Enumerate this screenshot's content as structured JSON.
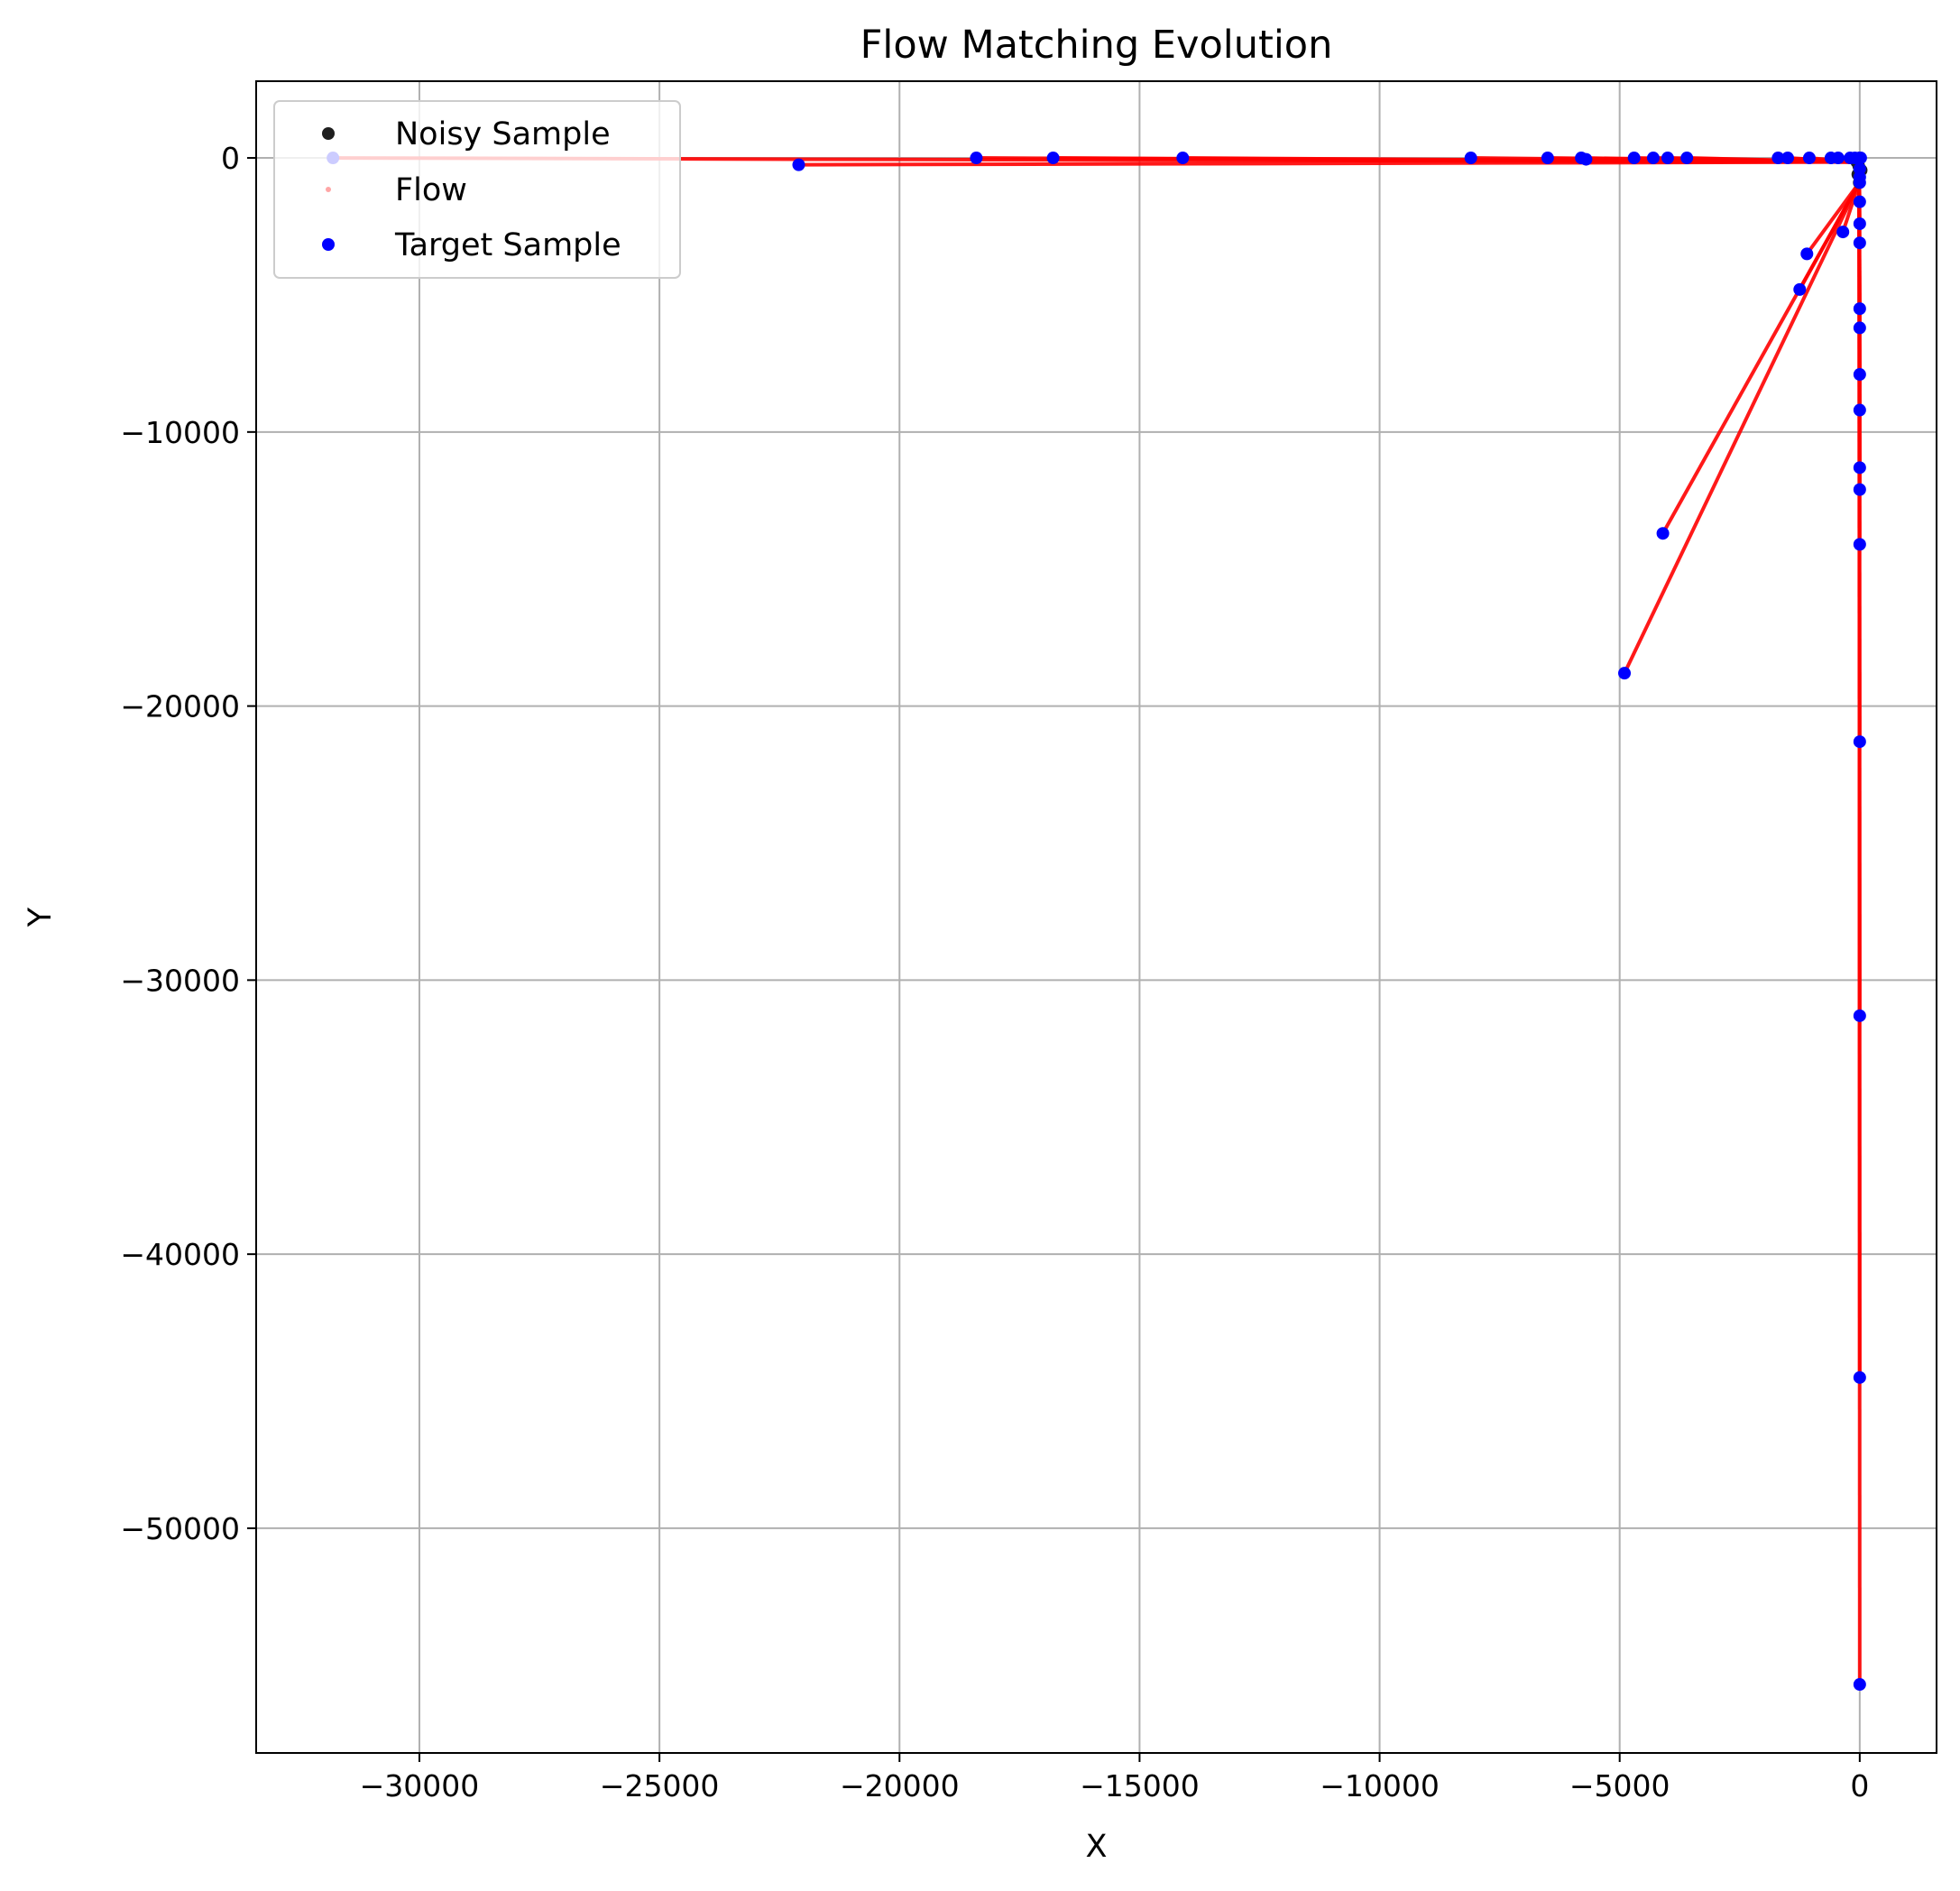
{
  "chart_data": {
    "type": "scatter",
    "title": "Flow Matching Evolution",
    "xlabel": "X",
    "ylabel": "Y",
    "xlim": [
      -33400,
      1600
    ],
    "ylim": [
      -58200,
      2800
    ],
    "grid": true,
    "legend_position": "top-left",
    "x_ticks": [
      -30000,
      -25000,
      -20000,
      -15000,
      -10000,
      -5000,
      0
    ],
    "x_tick_labels": [
      "−30000",
      "−25000",
      "−20000",
      "−15000",
      "−10000",
      "−5000",
      "0"
    ],
    "y_ticks": [
      0,
      -10000,
      -20000,
      -30000,
      -40000,
      -50000
    ],
    "y_tick_labels": [
      "0",
      "−10000",
      "−20000",
      "−30000",
      "−40000",
      "−50000"
    ],
    "series": [
      {
        "name": "Noisy Sample",
        "kind": "scatter",
        "color": "#1f1f1f",
        "points": [
          [
            0,
            0
          ],
          [
            -20,
            -300
          ],
          [
            -40,
            -600
          ],
          [
            -10,
            -900
          ],
          [
            -60,
            -150
          ],
          [
            30,
            -450
          ]
        ]
      },
      {
        "name": "Flow",
        "kind": "path",
        "color": "#ff0000"
      },
      {
        "name": "Target Sample",
        "kind": "scatter",
        "color": "#0000ff",
        "points": [
          [
            -31800,
            0
          ],
          [
            -22100,
            -250
          ],
          [
            -18400,
            0
          ],
          [
            -16800,
            0
          ],
          [
            -14100,
            0
          ],
          [
            -8100,
            0
          ],
          [
            -6500,
            0
          ],
          [
            -5800,
            0
          ],
          [
            -5700,
            -50
          ],
          [
            -4700,
            0
          ],
          [
            -4300,
            0
          ],
          [
            -4000,
            0
          ],
          [
            -3600,
            0
          ],
          [
            -1700,
            0
          ],
          [
            -1500,
            0
          ],
          [
            -1050,
            0
          ],
          [
            -600,
            0
          ],
          [
            -450,
            0
          ],
          [
            -200,
            0
          ],
          [
            -100,
            0
          ],
          [
            0,
            0
          ],
          [
            20,
            0
          ],
          [
            -1100,
            -3500
          ],
          [
            -1250,
            -4800
          ],
          [
            -350,
            -2700
          ],
          [
            -4100,
            -13700
          ],
          [
            -4900,
            -18800
          ],
          [
            0,
            -400
          ],
          [
            0,
            -700
          ],
          [
            0,
            -900
          ],
          [
            0,
            -1600
          ],
          [
            0,
            -2400
          ],
          [
            0,
            -3100
          ],
          [
            0,
            -5500
          ],
          [
            0,
            -6200
          ],
          [
            0,
            -7900
          ],
          [
            0,
            -9200
          ],
          [
            0,
            -11300
          ],
          [
            0,
            -12100
          ],
          [
            0,
            -14100
          ],
          [
            0,
            -21300
          ],
          [
            0,
            -31300
          ],
          [
            0,
            -44500
          ],
          [
            0,
            -55700
          ]
        ]
      }
    ]
  }
}
